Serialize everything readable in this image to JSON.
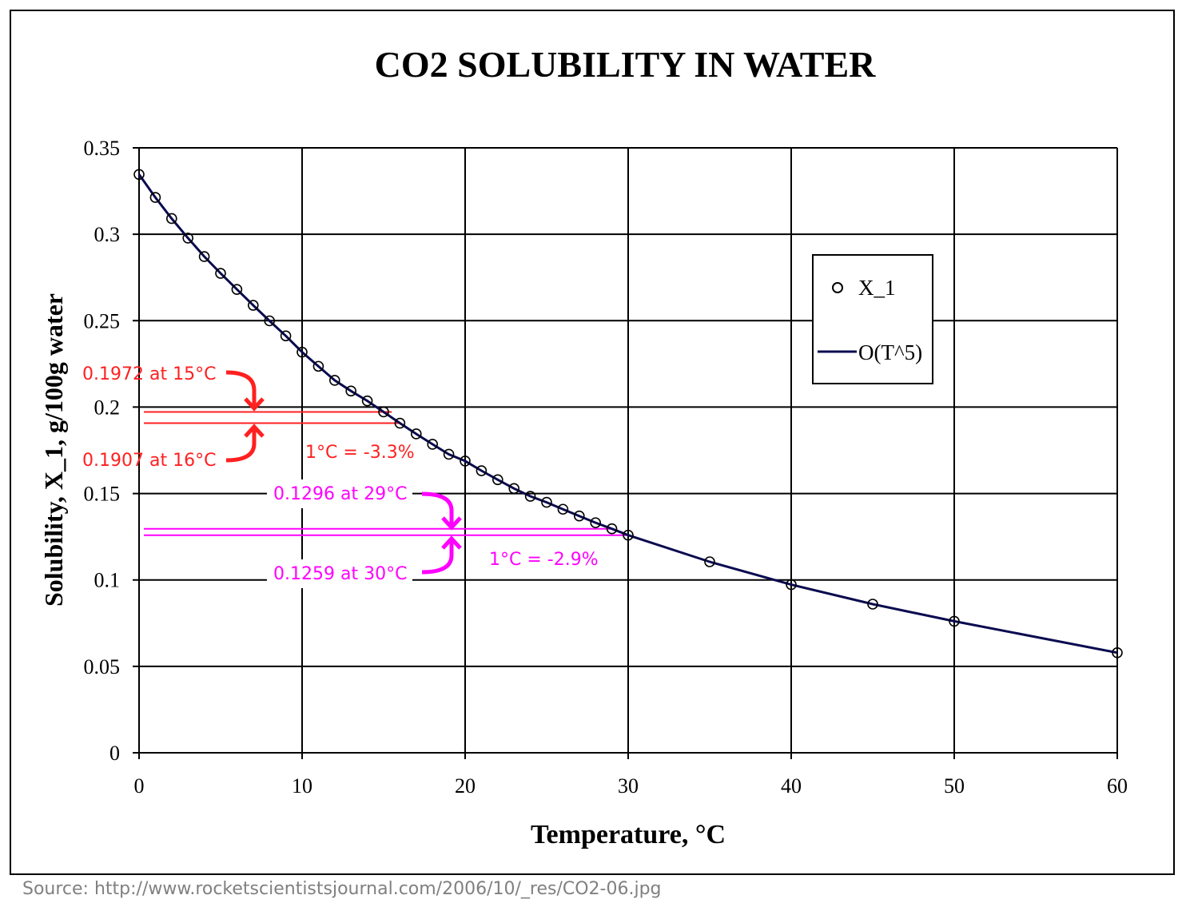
{
  "chart_data": {
    "type": "scatter",
    "title": "CO2 SOLUBILITY IN WATER",
    "xlabel": "Temperature, °C",
    "ylabel": "Solubility, X_1, g/100g water",
    "xlim": [
      0,
      60
    ],
    "ylim": [
      0,
      0.35
    ],
    "xticks": [
      "0",
      "10",
      "20",
      "30",
      "40",
      "50",
      "60"
    ],
    "yticks": [
      "0",
      "0.05",
      "0.1",
      "0.15",
      "0.2",
      "0.25",
      "0.3",
      "0.35"
    ],
    "grid": true,
    "legend_placement": "right",
    "series": [
      {
        "name": "X_1",
        "style": "open-circle-markers",
        "color": "#000000",
        "x": [
          0,
          1,
          2,
          3,
          4,
          5,
          6,
          7,
          8,
          9,
          10,
          11,
          12,
          13,
          14,
          15,
          16,
          17,
          18,
          19,
          20,
          21,
          22,
          23,
          24,
          25,
          26,
          27,
          28,
          29,
          30,
          35,
          40,
          45,
          50,
          60
        ],
        "y": [
          0.3346,
          0.3213,
          0.3091,
          0.2978,
          0.2871,
          0.2774,
          0.2681,
          0.2589,
          0.2499,
          0.2412,
          0.2318,
          0.2236,
          0.2155,
          0.2093,
          0.2036,
          0.1972,
          0.1907,
          0.1845,
          0.1785,
          0.1727,
          0.1688,
          0.1632,
          0.158,
          0.1529,
          0.1484,
          0.1449,
          0.1409,
          0.137,
          0.1331,
          0.1296,
          0.1259,
          0.1105,
          0.0973,
          0.086,
          0.0761,
          0.0579
        ]
      },
      {
        "name": "O(T^5)",
        "style": "line",
        "color": "#0a0a50"
      }
    ],
    "annotations": [
      {
        "text": "0.1972 at 15°C",
        "color": "#ff2020",
        "x": 15,
        "y": 0.1972
      },
      {
        "text": "0.1907 at 16°C",
        "color": "#ff2020",
        "x": 16,
        "y": 0.1907
      },
      {
        "text": "1°C = -3.3%",
        "color": "#ff2020"
      },
      {
        "text": "0.1296 at 29°C",
        "color": "#ff00ff",
        "x": 29,
        "y": 0.1296
      },
      {
        "text": "0.1259 at 30°C",
        "color": "#ff00ff",
        "x": 30,
        "y": 0.1259
      },
      {
        "text": "1°C = -2.9%",
        "color": "#ff00ff"
      }
    ]
  },
  "source": "Source:  http://www.rocketscientistsjournal.com/2006/10/_res/CO2-06.jpg"
}
